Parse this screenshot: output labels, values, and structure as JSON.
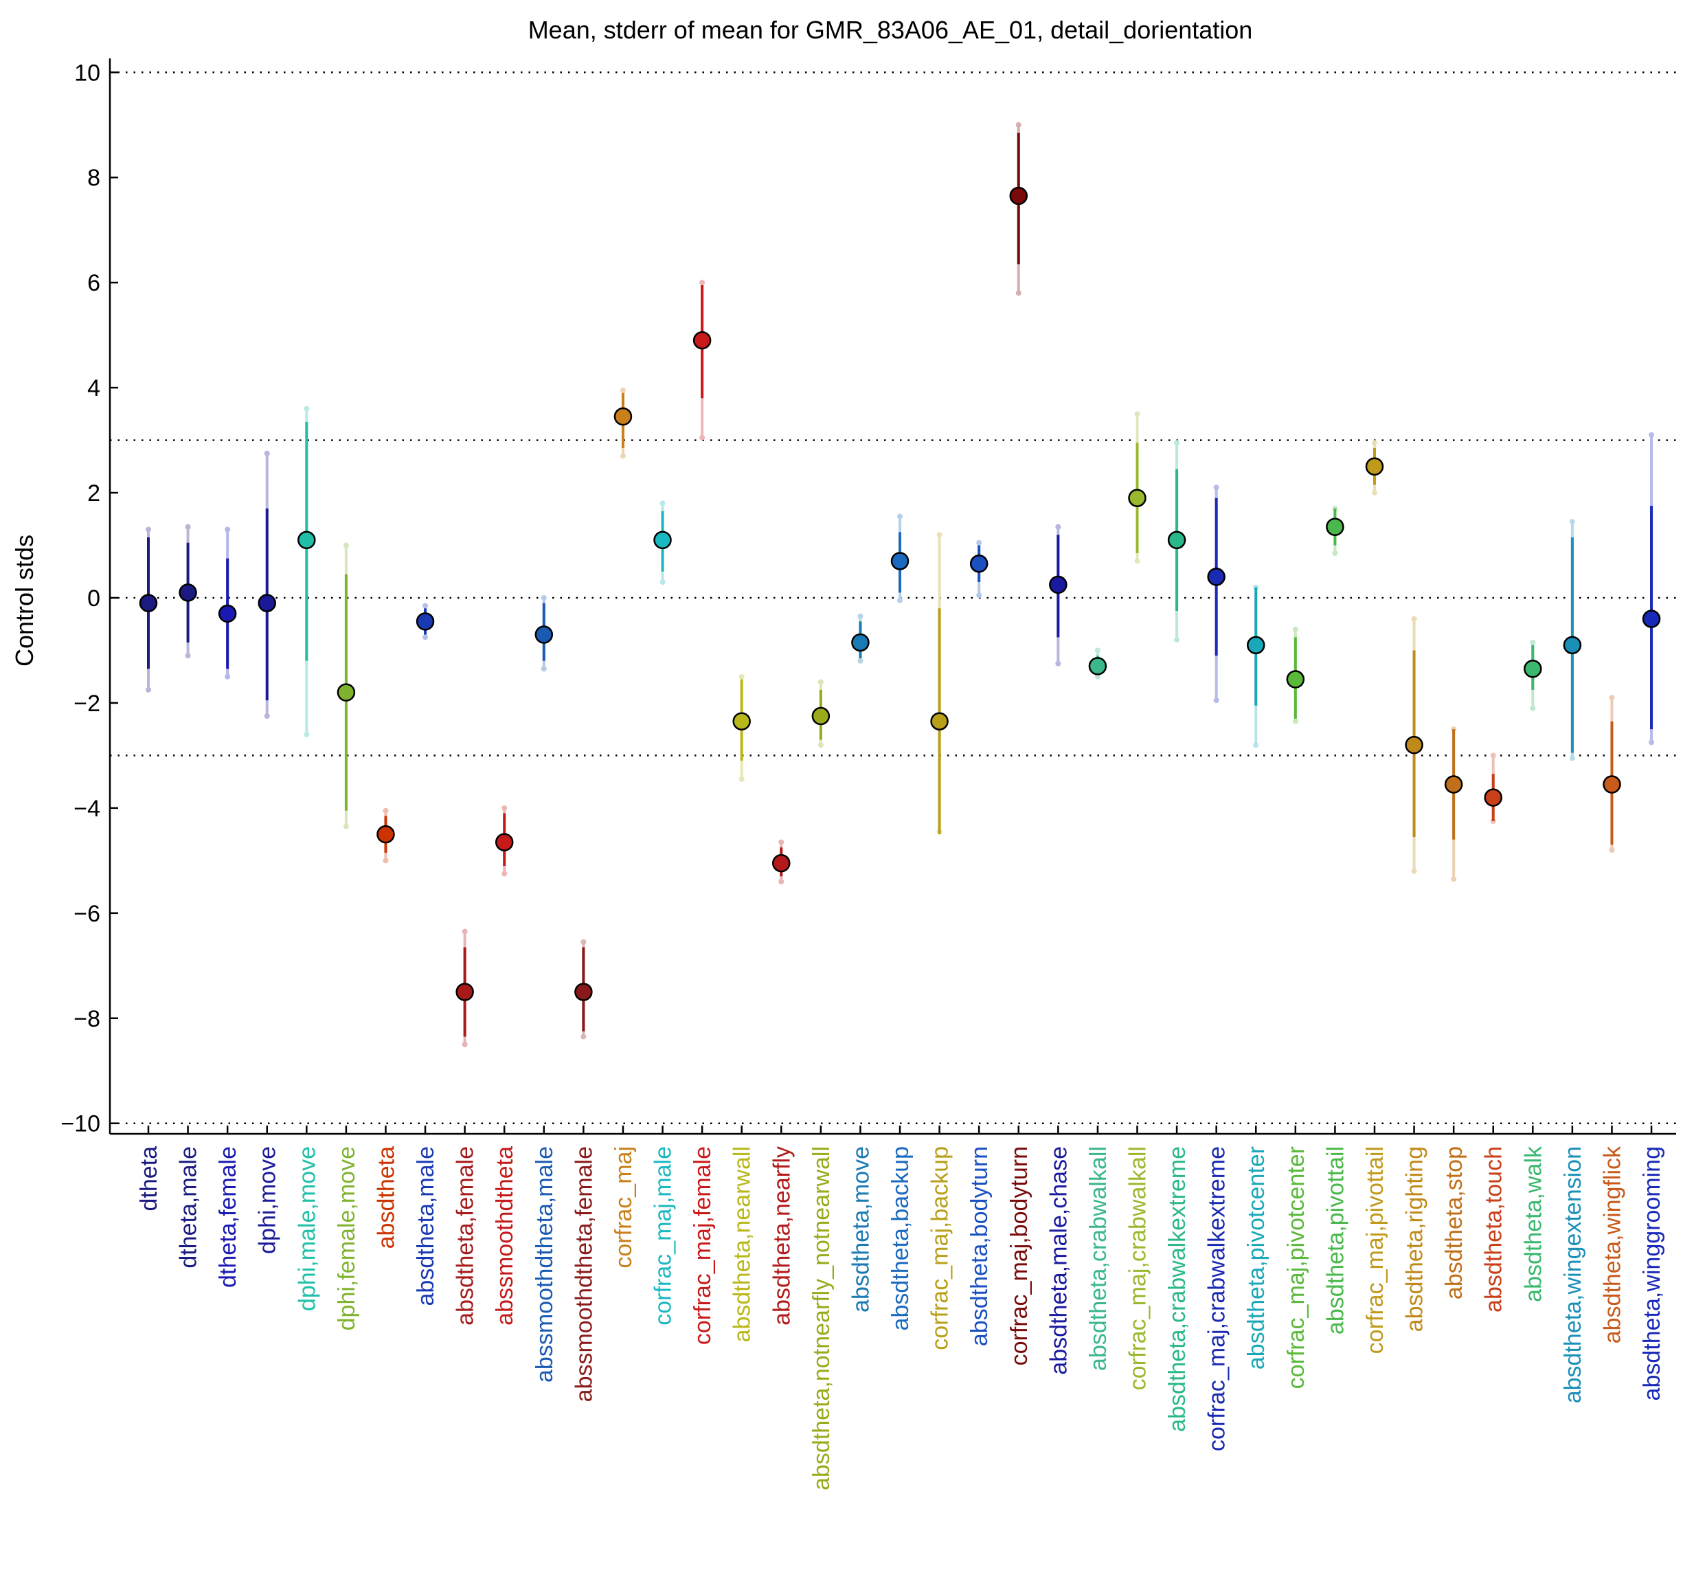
{
  "chart_data": {
    "type": "scatter",
    "title": "Mean, stderr of mean for GMR_83A06_AE_01, detail_dorientation",
    "xlabel": "",
    "ylabel": "Control stds",
    "ylim": [
      -10.2,
      10.2
    ],
    "yticks": [
      10,
      8,
      6,
      4,
      2,
      0,
      -2,
      -4,
      -6,
      -8,
      -10
    ],
    "ytick_labels": [
      "10",
      "8",
      "6",
      "4",
      "2",
      "0",
      "−2",
      "−4",
      "−6",
      "−8",
      "−10"
    ],
    "reference_lines": [
      10,
      3,
      0,
      -3,
      -10
    ],
    "grid": false,
    "points": [
      {
        "label": "dtheta",
        "mean": -0.1,
        "se_low": -1.35,
        "se_high": 1.15,
        "sd_low": -1.75,
        "sd_high": 1.3,
        "color": "#1a1a80"
      },
      {
        "label": "dtheta,male",
        "mean": 0.1,
        "se_low": -0.85,
        "se_high": 1.05,
        "sd_low": -1.1,
        "sd_high": 1.35,
        "color": "#1a1a80"
      },
      {
        "label": "dtheta,female",
        "mean": -0.3,
        "se_low": -1.35,
        "se_high": 0.75,
        "sd_low": -1.5,
        "sd_high": 1.3,
        "color": "#1a1ab3"
      },
      {
        "label": "dphi,move",
        "mean": -0.1,
        "se_low": -1.95,
        "se_high": 1.7,
        "sd_low": -2.25,
        "sd_high": 2.75,
        "color": "#1a1a99"
      },
      {
        "label": "dphi,male,move",
        "mean": 1.1,
        "se_low": -1.2,
        "se_high": 3.35,
        "sd_low": -2.6,
        "sd_high": 3.6,
        "color": "#1fbfa8"
      },
      {
        "label": "dphi,female,move",
        "mean": -1.8,
        "se_low": -4.05,
        "se_high": 0.45,
        "sd_low": -4.35,
        "sd_high": 1.0,
        "color": "#7fb32e"
      },
      {
        "label": "absdtheta",
        "mean": -4.5,
        "se_low": -4.85,
        "se_high": -4.15,
        "sd_low": -5.0,
        "sd_high": -4.05,
        "color": "#cc3300"
      },
      {
        "label": "absdtheta,male",
        "mean": -0.45,
        "se_low": -0.7,
        "se_high": -0.2,
        "sd_low": -0.75,
        "sd_high": -0.15,
        "color": "#1a3ab3"
      },
      {
        "label": "absdtheta,female",
        "mean": -7.5,
        "se_low": -8.35,
        "se_high": -6.65,
        "sd_low": -8.5,
        "sd_high": -6.35,
        "color": "#a61a1a"
      },
      {
        "label": "abssmoothdtheta",
        "mean": -4.65,
        "se_low": -5.1,
        "se_high": -4.1,
        "sd_low": -5.25,
        "sd_high": -4.0,
        "color": "#c41a1a"
      },
      {
        "label": "abssmoothdtheta,male",
        "mean": -0.7,
        "se_low": -1.2,
        "se_high": -0.1,
        "sd_low": -1.35,
        "sd_high": 0.0,
        "color": "#1a5ab3"
      },
      {
        "label": "abssmoothdtheta,female",
        "mean": -7.5,
        "se_low": -8.25,
        "se_high": -6.65,
        "sd_low": -8.35,
        "sd_high": -6.55,
        "color": "#8a1a1a"
      },
      {
        "label": "corfrac_maj",
        "mean": 3.45,
        "se_low": 2.85,
        "se_high": 3.9,
        "sd_low": 2.7,
        "sd_high": 3.95,
        "color": "#c8801a"
      },
      {
        "label": "corfrac_maj,male",
        "mean": 1.1,
        "se_low": 0.5,
        "se_high": 1.65,
        "sd_low": 0.3,
        "sd_high": 1.8,
        "color": "#1ab8c0"
      },
      {
        "label": "corfrac_maj,female",
        "mean": 4.9,
        "se_low": 3.8,
        "se_high": 5.95,
        "sd_low": 3.05,
        "sd_high": 6.0,
        "color": "#c81a1a"
      },
      {
        "label": "absdtheta,nearwall",
        "mean": -2.35,
        "se_low": -3.1,
        "se_high": -1.55,
        "sd_low": -3.45,
        "sd_high": -1.5,
        "color": "#b8b81a"
      },
      {
        "label": "absdtheta,nearfly",
        "mean": -5.05,
        "se_low": -5.3,
        "se_high": -4.75,
        "sd_low": -5.4,
        "sd_high": -4.65,
        "color": "#b31a1a"
      },
      {
        "label": "absdtheta,notnearfly_notnearwall",
        "mean": -2.25,
        "se_low": -2.7,
        "se_high": -1.75,
        "sd_low": -2.8,
        "sd_high": -1.6,
        "color": "#9aaa1a"
      },
      {
        "label": "absdtheta,move",
        "mean": -0.85,
        "se_low": -1.15,
        "se_high": -0.45,
        "sd_low": -1.2,
        "sd_high": -0.35,
        "color": "#1a7ab3"
      },
      {
        "label": "absdtheta,backup",
        "mean": 0.7,
        "se_low": 0.1,
        "se_high": 1.25,
        "sd_low": -0.05,
        "sd_high": 1.55,
        "color": "#1a6ac0"
      },
      {
        "label": "corfrac_maj,backup",
        "mean": -2.35,
        "se_low": -4.5,
        "se_high": -0.2,
        "sd_low": -4.45,
        "sd_high": 1.2,
        "color": "#b8a01a"
      },
      {
        "label": "absdtheta,bodyturn",
        "mean": 0.65,
        "se_low": 0.3,
        "se_high": 1.0,
        "sd_low": 0.05,
        "sd_high": 1.05,
        "color": "#1a50c0"
      },
      {
        "label": "corfrac_maj,bodyturn",
        "mean": 7.65,
        "se_low": 6.35,
        "se_high": 8.85,
        "sd_low": 5.8,
        "sd_high": 9.0,
        "color": "#7a0a0a"
      },
      {
        "label": "absdtheta,male,chase",
        "mean": 0.25,
        "se_low": -0.75,
        "se_high": 1.2,
        "sd_low": -1.25,
        "sd_high": 1.35,
        "color": "#1a1aa0"
      },
      {
        "label": "absdtheta,crabwalkall",
        "mean": -1.3,
        "se_low": -1.45,
        "se_high": -1.1,
        "sd_low": -1.5,
        "sd_high": -1.0,
        "color": "#3ab88a"
      },
      {
        "label": "corfrac_maj,crabwalkall",
        "mean": 1.9,
        "se_low": 0.85,
        "se_high": 2.95,
        "sd_low": 0.7,
        "sd_high": 3.5,
        "color": "#9ab82e"
      },
      {
        "label": "absdtheta,crabwalkextreme",
        "mean": 1.1,
        "se_low": -0.25,
        "se_high": 2.45,
        "sd_low": -0.8,
        "sd_high": 2.95,
        "color": "#2ab88a"
      },
      {
        "label": "corfrac_maj,crabwalkextreme",
        "mean": 0.4,
        "se_low": -1.1,
        "se_high": 1.9,
        "sd_low": -1.95,
        "sd_high": 2.1,
        "color": "#1a2ab3"
      },
      {
        "label": "absdtheta,pivotcenter",
        "mean": -0.9,
        "se_low": -2.05,
        "se_high": 0.2,
        "sd_low": -2.8,
        "sd_high": 0.2,
        "color": "#1aa8b8"
      },
      {
        "label": "corfrac_maj,pivotcenter",
        "mean": -1.55,
        "se_low": -2.3,
        "se_high": -0.75,
        "sd_low": -2.35,
        "sd_high": -0.6,
        "color": "#5ab83a"
      },
      {
        "label": "absdtheta,pivottail",
        "mean": 1.35,
        "se_low": 1.0,
        "se_high": 1.7,
        "sd_low": 0.85,
        "sd_high": 1.7,
        "color": "#4ab84a"
      },
      {
        "label": "corfrac_maj,pivottail",
        "mean": 2.5,
        "se_low": 2.15,
        "se_high": 2.85,
        "sd_low": 2.0,
        "sd_high": 2.95,
        "color": "#c09a1a"
      },
      {
        "label": "absdtheta,righting",
        "mean": -2.8,
        "se_low": -4.55,
        "se_high": -1.0,
        "sd_low": -5.2,
        "sd_high": -0.4,
        "color": "#c08a1a"
      },
      {
        "label": "absdtheta,stop",
        "mean": -3.55,
        "se_low": -4.6,
        "se_high": -2.5,
        "sd_low": -5.35,
        "sd_high": -2.5,
        "color": "#c0701a"
      },
      {
        "label": "absdtheta,touch",
        "mean": -3.8,
        "se_low": -4.25,
        "se_high": -3.35,
        "sd_low": -4.25,
        "sd_high": -3.0,
        "color": "#c8401a"
      },
      {
        "label": "absdtheta,walk",
        "mean": -1.35,
        "se_low": -1.75,
        "se_high": -0.9,
        "sd_low": -2.1,
        "sd_high": -0.85,
        "color": "#3ab870"
      },
      {
        "label": "absdtheta,wingextension",
        "mean": -0.9,
        "se_low": -2.95,
        "se_high": 1.15,
        "sd_low": -3.05,
        "sd_high": 1.45,
        "color": "#1a90b8"
      },
      {
        "label": "absdtheta,wingflick",
        "mean": -3.55,
        "se_low": -4.7,
        "se_high": -2.35,
        "sd_low": -4.8,
        "sd_high": -1.9,
        "color": "#c85a1a"
      },
      {
        "label": "absdtheta,winggrooming",
        "mean": -0.4,
        "se_low": -2.5,
        "se_high": 1.75,
        "sd_low": -2.75,
        "sd_high": 3.1,
        "color": "#1a2ab8"
      }
    ]
  }
}
